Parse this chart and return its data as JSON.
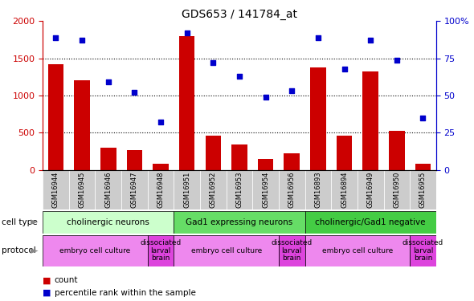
{
  "title": "GDS653 / 141784_at",
  "samples": [
    "GSM16944",
    "GSM16945",
    "GSM16946",
    "GSM16947",
    "GSM16948",
    "GSM16951",
    "GSM16952",
    "GSM16953",
    "GSM16954",
    "GSM16956",
    "GSM16893",
    "GSM16894",
    "GSM16949",
    "GSM16950",
    "GSM16955"
  ],
  "counts": [
    1420,
    1210,
    300,
    265,
    80,
    1800,
    460,
    340,
    145,
    230,
    1380,
    460,
    1320,
    530,
    80
  ],
  "percentiles": [
    89,
    87,
    59,
    52,
    32,
    92,
    72,
    63,
    49,
    53,
    89,
    68,
    87,
    74,
    35
  ],
  "ylim_left": [
    0,
    2000
  ],
  "ylim_right": [
    0,
    100
  ],
  "yticks_left": [
    0,
    500,
    1000,
    1500,
    2000
  ],
  "yticks_right": [
    0,
    25,
    50,
    75,
    100
  ],
  "bar_color": "#cc0000",
  "scatter_color": "#0000cc",
  "cell_types": [
    {
      "label": "cholinergic neurons",
      "start": 0,
      "end": 5,
      "color": "#ccffcc"
    },
    {
      "label": "Gad1 expressing neurons",
      "start": 5,
      "end": 10,
      "color": "#66dd66"
    },
    {
      "label": "cholinergic/Gad1 negative",
      "start": 10,
      "end": 15,
      "color": "#44cc44"
    }
  ],
  "protocols": [
    {
      "label": "embryo cell culture",
      "start": 0,
      "end": 4,
      "color": "#ee88ee"
    },
    {
      "label": "dissociated\nlarval\nbrain",
      "start": 4,
      "end": 5,
      "color": "#dd44dd"
    },
    {
      "label": "embryo cell culture",
      "start": 5,
      "end": 9,
      "color": "#ee88ee"
    },
    {
      "label": "dissociated\nlarval\nbrain",
      "start": 9,
      "end": 10,
      "color": "#dd44dd"
    },
    {
      "label": "embryo cell culture",
      "start": 10,
      "end": 14,
      "color": "#ee88ee"
    },
    {
      "label": "dissociated\nlarval\nbrain",
      "start": 14,
      "end": 15,
      "color": "#dd44dd"
    }
  ],
  "left_ylabel_color": "#cc0000",
  "right_ylabel_color": "#0000cc",
  "xtick_bg_color": "#cccccc",
  "legend_square_size": 8,
  "fig_width": 5.9,
  "fig_height": 3.75,
  "dpi": 100
}
